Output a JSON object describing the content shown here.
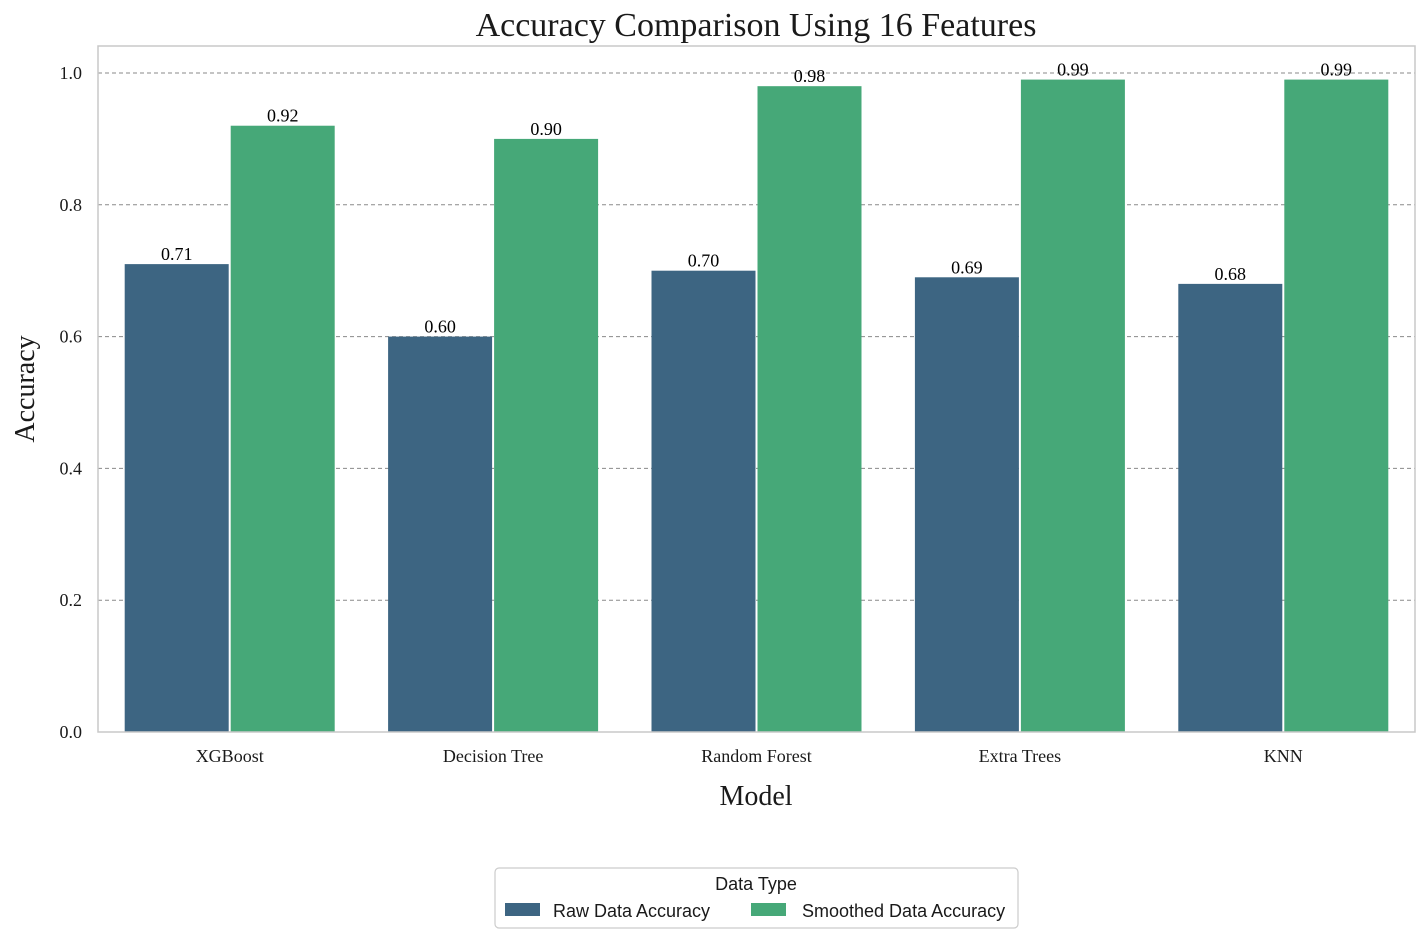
{
  "chart_data": {
    "type": "bar",
    "title": "Accuracy Comparison Using 16 Features",
    "xlabel": "Model",
    "ylabel": "Accuracy",
    "categories": [
      "XGBoost",
      "Decision Tree",
      "Random Forest",
      "Extra Trees",
      "KNN"
    ],
    "series": [
      {
        "name": "Raw Data Accuracy",
        "color": "#3d6582",
        "values": [
          0.71,
          0.6,
          0.7,
          0.69,
          0.68
        ],
        "labels": [
          "0.71",
          "0.60",
          "0.70",
          "0.69",
          "0.68"
        ]
      },
      {
        "name": "Smoothed Data Accuracy",
        "color": "#46a878",
        "values": [
          0.92,
          0.9,
          0.98,
          0.99,
          0.99
        ],
        "labels": [
          "0.92",
          "0.90",
          "0.98",
          "0.99",
          "0.99"
        ]
      }
    ],
    "ylim": [
      0,
      1.04
    ],
    "yticks": [
      0.0,
      0.2,
      0.4,
      0.6,
      0.8,
      1.0
    ],
    "ytick_labels": [
      "0.0",
      "0.2",
      "0.4",
      "0.6",
      "0.8",
      "1.0"
    ],
    "grid": "y, dashed",
    "legend": {
      "title": "Data Type",
      "placement": "bottom-center, below chart"
    }
  }
}
